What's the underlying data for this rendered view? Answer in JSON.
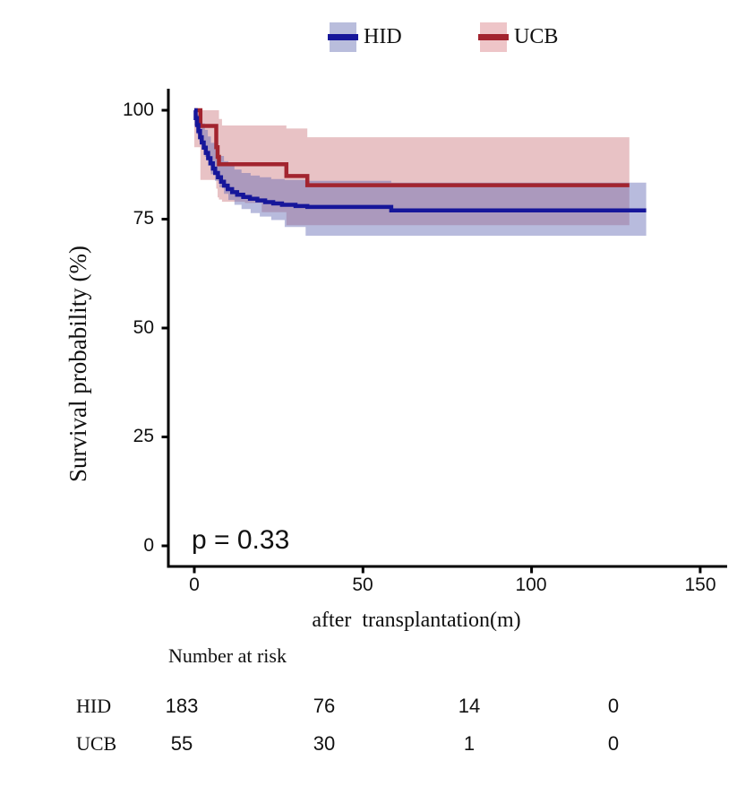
{
  "legend": {
    "items": [
      {
        "label": "HID",
        "swatch_color": "#b9bddc",
        "line_color": "#16169a"
      },
      {
        "label": "UCB",
        "swatch_color": "#eec5c8",
        "line_color": "#a2242f"
      }
    ]
  },
  "chart_data": {
    "type": "line",
    "subtype": "kaplan_meier_step_with_ci",
    "title": "",
    "xlabel": "after  transplantation(m)",
    "ylabel": "Survival probability (%)",
    "p_value": "p = 0.33",
    "xlim": [
      0,
      150
    ],
    "ylim": [
      0,
      100
    ],
    "xticks": [
      0,
      50,
      100,
      150
    ],
    "yticks": [
      100,
      75,
      50,
      25,
      0
    ],
    "grid": false,
    "legend_position": "top",
    "axis_color": "#000000",
    "series": [
      {
        "name": "HID",
        "line_color": "#16169a",
        "band_color": "rgba(98,105,180,0.45)",
        "survival_percent_steps": [
          [
            0,
            100
          ],
          [
            0.4,
            98.2
          ],
          [
            0.8,
            96.6
          ],
          [
            1.2,
            95.2
          ],
          [
            1.7,
            93.8
          ],
          [
            2.2,
            92.6
          ],
          [
            2.8,
            91.4
          ],
          [
            3.4,
            90.2
          ],
          [
            4.1,
            89.0
          ],
          [
            4.8,
            87.8
          ],
          [
            5.5,
            86.6
          ],
          [
            6.2,
            85.6
          ],
          [
            7.0,
            84.6
          ],
          [
            7.9,
            83.6
          ],
          [
            8.8,
            82.7
          ],
          [
            9.9,
            81.9
          ],
          [
            11.2,
            81.2
          ],
          [
            12.7,
            80.6
          ],
          [
            14.5,
            80.1
          ],
          [
            16.5,
            79.7
          ],
          [
            18.7,
            79.3
          ],
          [
            21.0,
            78.9
          ],
          [
            23.4,
            78.6
          ],
          [
            26.0,
            78.3
          ],
          [
            30.0,
            78.0
          ],
          [
            33.5,
            77.8
          ],
          [
            58.4,
            77.0
          ],
          [
            134,
            77.0
          ]
        ],
        "ci_band": [
          [
            0,
            100,
            100
          ],
          [
            0.7,
            99,
            96.5
          ],
          [
            1.5,
            98,
            94.5
          ],
          [
            2.3,
            97,
            92.8
          ],
          [
            3.1,
            95.5,
            91
          ],
          [
            4,
            94,
            89.3
          ],
          [
            4.9,
            92.5,
            87.3
          ],
          [
            6.1,
            91,
            85.3
          ],
          [
            7.4,
            89.5,
            83.8
          ],
          [
            8.8,
            88.3,
            82.3
          ],
          [
            10.1,
            87.3,
            80.8
          ],
          [
            11.9,
            86.4,
            79.4
          ],
          [
            14,
            85.6,
            78.3
          ],
          [
            16.7,
            85,
            77.3
          ],
          [
            19.4,
            84.6,
            76.4
          ],
          [
            22.8,
            84.2,
            75.6
          ],
          [
            26.8,
            84,
            74.8
          ],
          [
            33,
            83.8,
            73.2
          ],
          [
            58.4,
            83.4,
            71.2
          ],
          [
            134,
            83.4,
            71.2
          ]
        ]
      },
      {
        "name": "UCB",
        "line_color": "#a2242f",
        "band_color": "rgba(178,52,62,0.30)",
        "survival_percent_steps": [
          [
            0,
            100
          ],
          [
            1.8,
            96.4
          ],
          [
            6.5,
            91.5
          ],
          [
            6.9,
            89.3
          ],
          [
            7.3,
            87.6
          ],
          [
            27.3,
            84.9
          ],
          [
            33.5,
            82.8
          ],
          [
            129,
            82.8
          ]
        ],
        "ci_band": [
          [
            0,
            100,
            100
          ],
          [
            1.8,
            100,
            91.5
          ],
          [
            6.5,
            100,
            84
          ],
          [
            6.9,
            100,
            82
          ],
          [
            7.3,
            98,
            80
          ],
          [
            8.2,
            96.5,
            79.5
          ],
          [
            15,
            96.5,
            79
          ],
          [
            20,
            96.5,
            78.7
          ],
          [
            27.3,
            95.8,
            76.6
          ],
          [
            33.5,
            93.8,
            73.6
          ],
          [
            129,
            93.8,
            73.6
          ]
        ]
      }
    ],
    "risk_table": {
      "header": "Number at risk",
      "time_points": [
        0,
        50,
        100,
        150
      ],
      "rows": [
        {
          "label": "HID",
          "values": [
            "183",
            "76",
            "14",
            "0"
          ]
        },
        {
          "label": "UCB",
          "values": [
            "55",
            "30",
            "1",
            "0"
          ]
        }
      ]
    }
  }
}
